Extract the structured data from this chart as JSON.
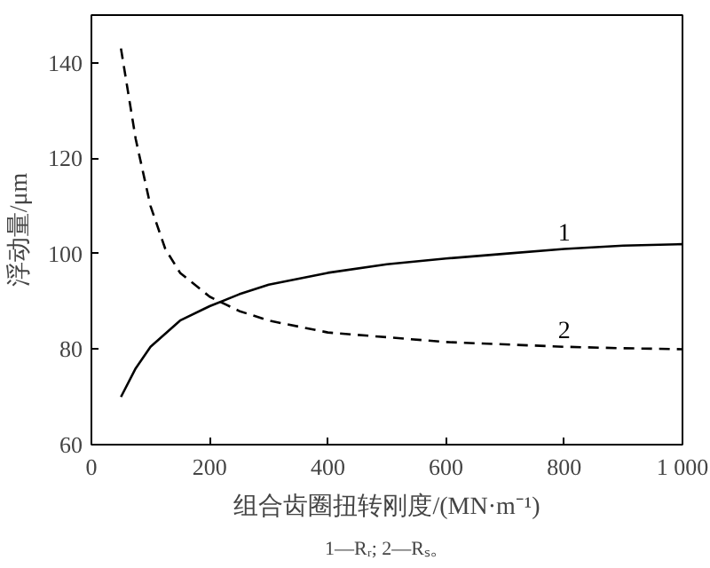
{
  "chart_data": {
    "type": "line",
    "xlabel": "组合齿圈扭转刚度/(MN·m⁻¹)",
    "ylabel": "浮动量/μm",
    "annotations": [
      "1—Rᵣ; 2—Rₛ。"
    ],
    "xlim": [
      0,
      1000
    ],
    "ylim": [
      60,
      150
    ],
    "xticks": [
      0,
      200,
      400,
      600,
      800,
      {
        "value": 1000,
        "label": "1 000"
      }
    ],
    "yticks": [
      60,
      80,
      100,
      120,
      140
    ],
    "grid": false,
    "series": [
      {
        "name": "1",
        "color": "#000000",
        "line_style": "solid",
        "x": [
          50,
          75,
          100,
          150,
          200,
          250,
          300,
          400,
          500,
          600,
          700,
          800,
          900,
          1000
        ],
        "values": [
          70,
          76,
          80.5,
          86,
          89,
          91.5,
          93.5,
          96,
          97.8,
          99,
          100,
          101,
          101.7,
          102
        ]
      },
      {
        "name": "2",
        "color": "#000000",
        "line_style": "dashed",
        "x": [
          50,
          75,
          100,
          125,
          150,
          200,
          250,
          300,
          400,
          500,
          600,
          800,
          900,
          1000
        ],
        "values": [
          143,
          124,
          110,
          101,
          96,
          91,
          88,
          86,
          83.5,
          82.5,
          81.5,
          80.5,
          80.2,
          80
        ]
      }
    ]
  }
}
